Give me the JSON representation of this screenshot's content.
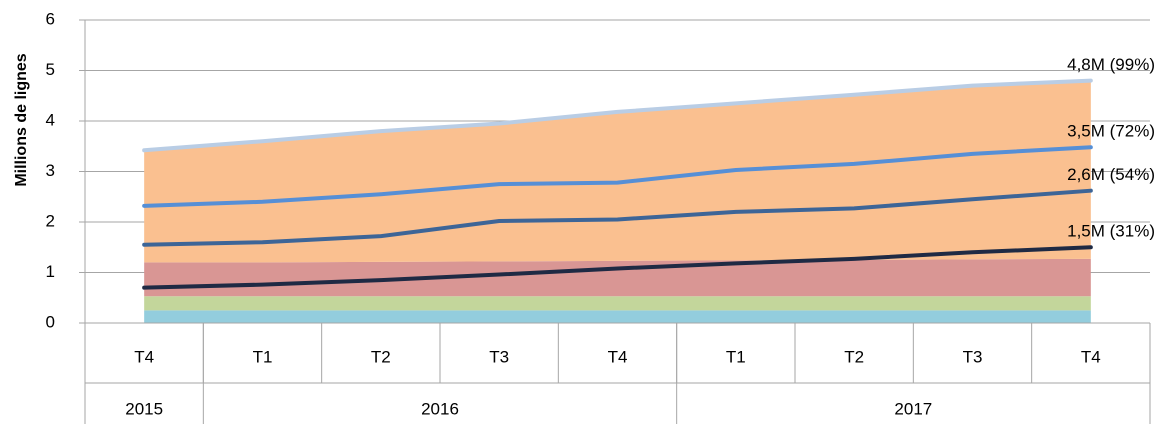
{
  "chart_data": {
    "type": "area_line",
    "y_axis_label": "Millions de lignes",
    "categories": [
      "T4",
      "T1",
      "T2",
      "T3",
      "T4",
      "T1",
      "T2",
      "T3",
      "T4"
    ],
    "groups": [
      {
        "label": "2015",
        "count": 1
      },
      {
        "label": "2016",
        "count": 4
      },
      {
        "label": "2017",
        "count": 4
      }
    ],
    "ylim": [
      0,
      6
    ],
    "yticks": [
      0,
      1,
      2,
      3,
      4,
      5,
      6
    ],
    "grid": true,
    "areas": [
      {
        "color": "#93cddd",
        "values": [
          0.25,
          0.25,
          0.25,
          0.25,
          0.25,
          0.25,
          0.25,
          0.25,
          0.25
        ]
      },
      {
        "color": "#c3d69b",
        "values": [
          0.28,
          0.28,
          0.28,
          0.28,
          0.28,
          0.28,
          0.28,
          0.28,
          0.28
        ]
      },
      {
        "color": "#d99694",
        "values": [
          0.67,
          0.67,
          0.68,
          0.69,
          0.7,
          0.71,
          0.72,
          0.73,
          0.74
        ]
      },
      {
        "color": "#fac090",
        "values": [
          2.22,
          2.4,
          2.59,
          2.73,
          2.95,
          3.11,
          3.27,
          3.44,
          3.53
        ]
      }
    ],
    "series": [
      {
        "color": "#1f2a44",
        "values": [
          0.7,
          0.76,
          0.85,
          0.96,
          1.08,
          1.18,
          1.27,
          1.4,
          1.5
        ],
        "end_label": "1,5M (31%)"
      },
      {
        "color": "#3d6597",
        "values": [
          1.55,
          1.6,
          1.72,
          2.02,
          2.05,
          2.2,
          2.27,
          2.45,
          2.62
        ],
        "end_label": "2,6M (54%)"
      },
      {
        "color": "#568fd6",
        "values": [
          2.32,
          2.4,
          2.55,
          2.75,
          2.78,
          3.03,
          3.15,
          3.35,
          3.48
        ],
        "end_label": "3,5M (72%)"
      },
      {
        "color": "#b9cde5",
        "values": [
          3.42,
          3.6,
          3.8,
          3.95,
          4.18,
          4.35,
          4.52,
          4.7,
          4.8
        ],
        "end_label": "4,8M (99%)"
      }
    ]
  }
}
